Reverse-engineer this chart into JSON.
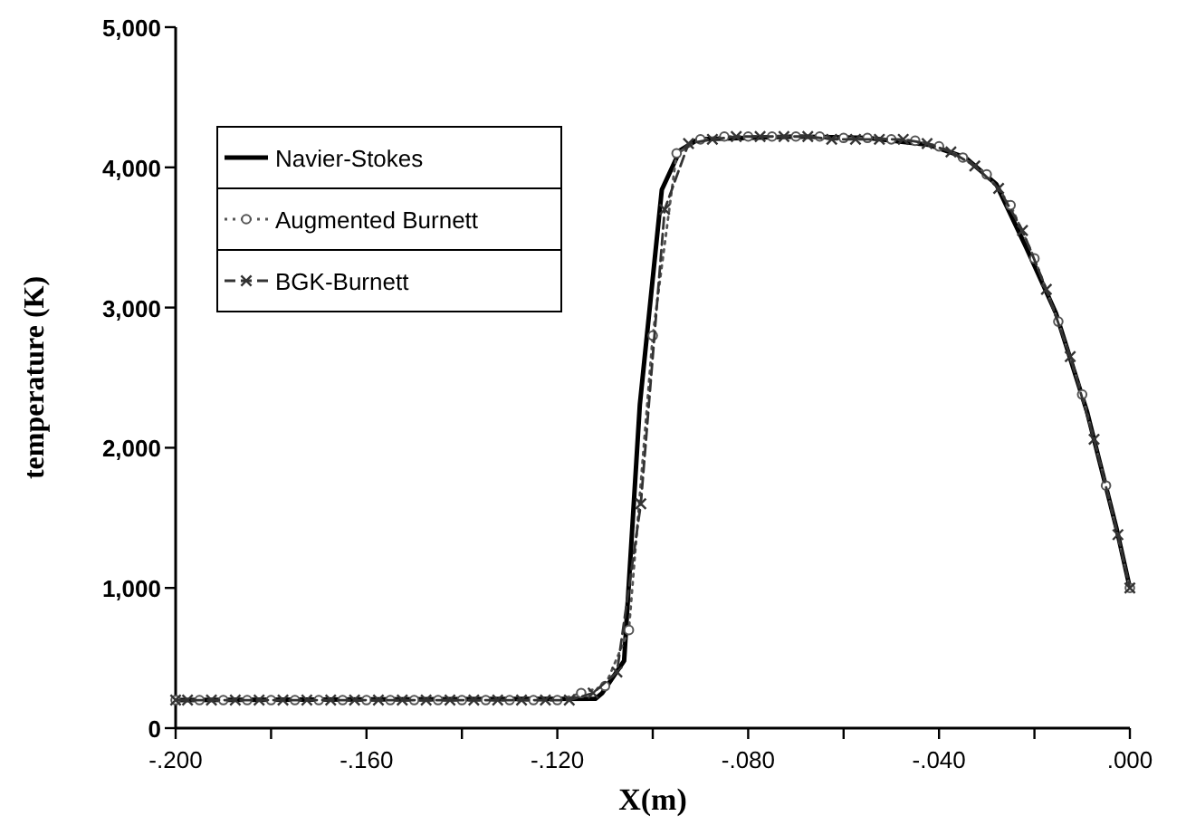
{
  "chart_data": {
    "type": "line",
    "xlabel": "X(m)",
    "ylabel": "temperature (K)",
    "xlim": [
      -0.2,
      0
    ],
    "xticks": [
      {
        "value": -0.2,
        "label": "-.200"
      },
      {
        "value": -0.18,
        "label": null
      },
      {
        "value": -0.16,
        "label": "-.160"
      },
      {
        "value": -0.14,
        "label": null
      },
      {
        "value": -0.12,
        "label": "-.120"
      },
      {
        "value": -0.1,
        "label": null
      },
      {
        "value": -0.08,
        "label": "-.080"
      },
      {
        "value": -0.06,
        "label": null
      },
      {
        "value": -0.04,
        "label": "-.040"
      },
      {
        "value": -0.02,
        "label": null
      },
      {
        "value": 0,
        "label": ".000"
      }
    ],
    "ylim": [
      0,
      5000
    ],
    "yticks": [
      {
        "value": 0,
        "label": "0"
      },
      {
        "value": 1000,
        "label": "1,000"
      },
      {
        "value": 2000,
        "label": "2,000"
      },
      {
        "value": 3000,
        "label": "3,000"
      },
      {
        "value": 4000,
        "label": "4,000"
      },
      {
        "value": 5000,
        "label": "5,000"
      }
    ],
    "grid": false,
    "legend": "top left",
    "series": [
      {
        "name": "Navier-Stokes",
        "color": "#000000",
        "marker": "none",
        "line_style": "solid",
        "x": [
          -0.2,
          -0.112,
          -0.1106,
          -0.106,
          -0.1027,
          -0.0981,
          -0.0943,
          -0.0905,
          -0.07,
          -0.055,
          -0.042,
          -0.0345,
          -0.028,
          -0.0216,
          -0.0155,
          -0.009,
          -0.0027,
          0
        ],
        "values": [
          200,
          210,
          250,
          480,
          2310,
          3840,
          4120,
          4200,
          4220,
          4210,
          4160,
          4070,
          3880,
          3420,
          2960,
          2260,
          1410,
          1000
        ]
      },
      {
        "name": "Augmented Burnett",
        "color": "#555555",
        "marker": "circle",
        "line_style": "dotted",
        "x": [
          -0.2,
          -0.195,
          -0.19,
          -0.185,
          -0.18,
          -0.175,
          -0.17,
          -0.165,
          -0.16,
          -0.155,
          -0.15,
          -0.145,
          -0.14,
          -0.135,
          -0.13,
          -0.125,
          -0.12,
          -0.115,
          -0.11,
          -0.105,
          -0.1,
          -0.095,
          -0.09,
          -0.085,
          -0.08,
          -0.075,
          -0.07,
          -0.065,
          -0.06,
          -0.055,
          -0.05,
          -0.045,
          -0.04,
          -0.035,
          -0.03,
          -0.025,
          -0.02,
          -0.015,
          -0.01,
          -0.005,
          0
        ],
        "values": [
          200,
          200,
          200,
          200,
          200,
          200,
          200,
          200,
          200,
          200,
          200,
          200,
          200,
          200,
          200,
          200,
          200,
          250,
          300,
          700,
          2800,
          4100,
          4200,
          4220,
          4220,
          4220,
          4220,
          4220,
          4210,
          4210,
          4200,
          4190,
          4150,
          4070,
          3950,
          3730,
          3350,
          2900,
          2380,
          1730,
          1000
        ]
      },
      {
        "name": "BGK-Burnett",
        "color": "#333333",
        "marker": "cross",
        "line_style": "dashed",
        "x": [
          -0.2,
          -0.1975,
          -0.1925,
          -0.1875,
          -0.1825,
          -0.1775,
          -0.1725,
          -0.1675,
          -0.1625,
          -0.1575,
          -0.1525,
          -0.1475,
          -0.1425,
          -0.1375,
          -0.1325,
          -0.1275,
          -0.1225,
          -0.1175,
          -0.1125,
          -0.1075,
          -0.1025,
          -0.0975,
          -0.0925,
          -0.0875,
          -0.0825,
          -0.0775,
          -0.0725,
          -0.0675,
          -0.0625,
          -0.0575,
          -0.0525,
          -0.0475,
          -0.0425,
          -0.0375,
          -0.0325,
          -0.0275,
          -0.0225,
          -0.0175,
          -0.0125,
          -0.0075,
          -0.0025,
          0
        ],
        "values": [
          200,
          200,
          200,
          200,
          200,
          200,
          200,
          200,
          200,
          200,
          200,
          200,
          200,
          200,
          200,
          200,
          200,
          200,
          250,
          400,
          1600,
          3700,
          4170,
          4200,
          4220,
          4220,
          4220,
          4220,
          4200,
          4200,
          4200,
          4200,
          4170,
          4110,
          4010,
          3850,
          3550,
          3130,
          2650,
          2060,
          1380,
          1000
        ]
      }
    ]
  }
}
